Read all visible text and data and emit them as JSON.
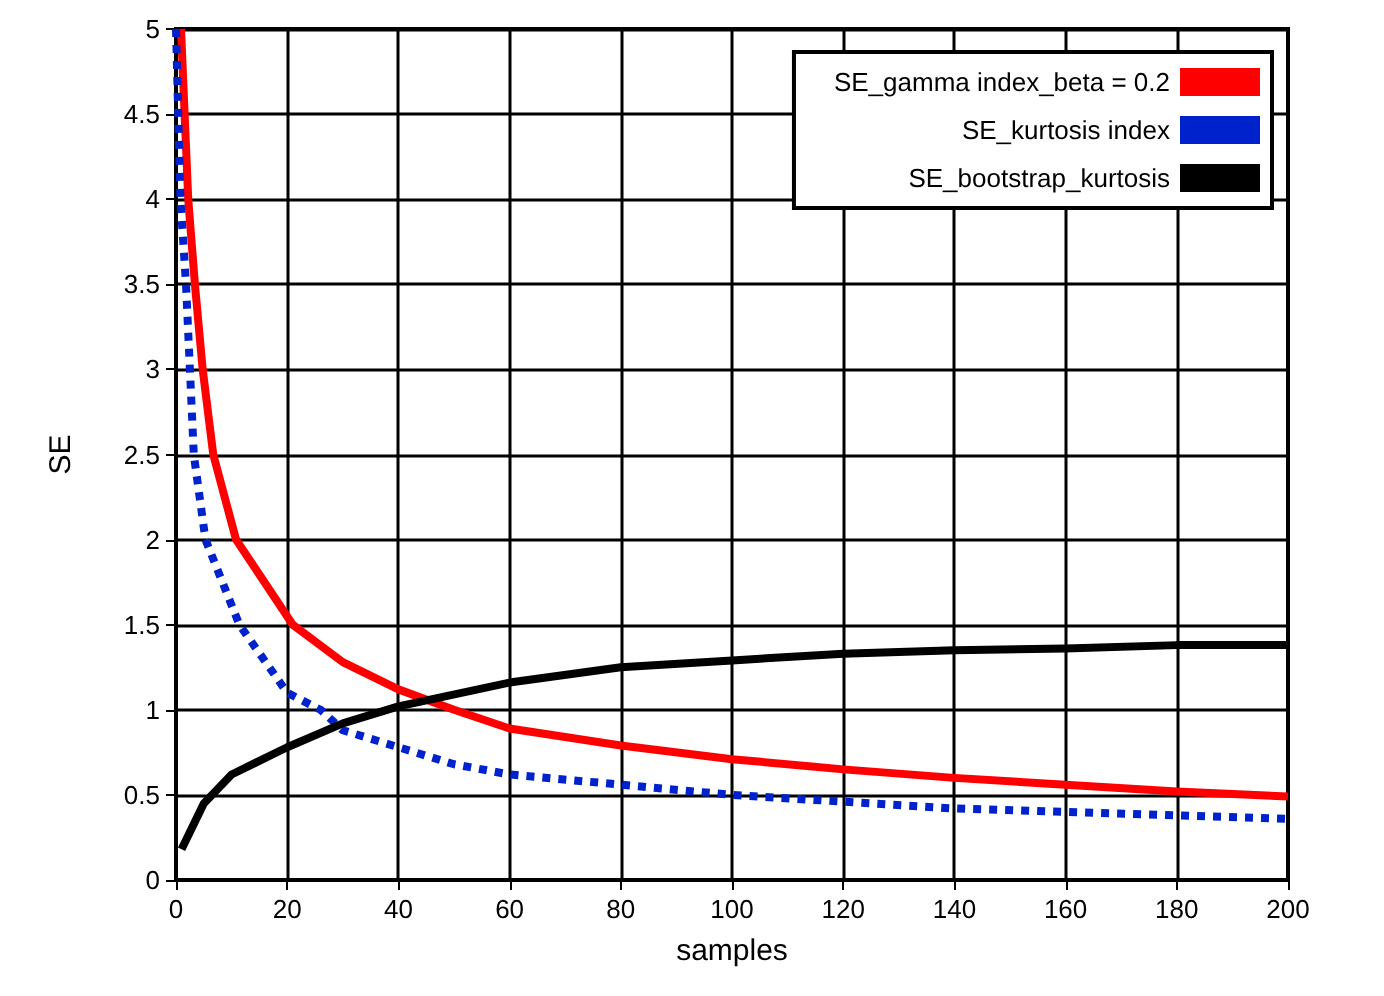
{
  "chart_data": {
    "type": "line",
    "xlabel": "samples",
    "ylabel": "SE",
    "xlim": [
      0,
      200
    ],
    "ylim": [
      0,
      5
    ],
    "xticks": [
      0,
      20,
      40,
      60,
      80,
      100,
      120,
      140,
      160,
      180,
      200
    ],
    "yticks": [
      0,
      0.5,
      1,
      1.5,
      2,
      2.5,
      3,
      3.5,
      4,
      4.5,
      5
    ],
    "grid": true,
    "legend": "top right",
    "series": [
      {
        "name": "SE_gamma index_beta = 0.2",
        "color": "#ff0000",
        "line_style": "solid",
        "x": [
          0.9,
          2.2,
          3.4,
          4.8,
          6.7,
          10.8,
          21,
          30,
          40,
          50,
          60,
          80,
          100,
          120,
          140,
          160,
          180,
          200
        ],
        "values": [
          5,
          4,
          3.5,
          3,
          2.5,
          2,
          1.5,
          1.28,
          1.12,
          1,
          0.89,
          0.79,
          0.71,
          0.65,
          0.6,
          0.56,
          0.52,
          0.49
        ]
      },
      {
        "name": "SE_kurtosis index",
        "color": "#0022cc",
        "line_style": "dotted",
        "x": [
          0,
          0.8,
          1.8,
          3.2,
          5.3,
          11.4,
          20,
          26,
          30,
          40,
          50,
          60,
          80,
          100,
          120,
          140,
          160,
          180,
          200
        ],
        "values": [
          5,
          4,
          3.5,
          2.5,
          2,
          1.5,
          1.1,
          1,
          0.88,
          0.78,
          0.68,
          0.62,
          0.56,
          0.5,
          0.46,
          0.42,
          0.4,
          0.38,
          0.36
        ]
      },
      {
        "name": "SE_bootstrap_kurtosis",
        "color": "#000000",
        "line_style": "solid",
        "x": [
          1,
          5,
          10,
          20,
          30,
          40,
          60,
          80,
          100,
          120,
          140,
          160,
          180,
          200
        ],
        "values": [
          0.18,
          0.45,
          0.62,
          0.78,
          0.92,
          1.02,
          1.16,
          1.25,
          1.29,
          1.33,
          1.35,
          1.36,
          1.38,
          1.38
        ]
      }
    ]
  }
}
